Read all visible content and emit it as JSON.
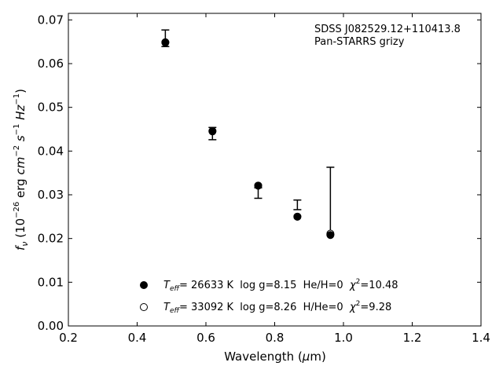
{
  "chart_data": {
    "type": "scatter",
    "xlabel": "Wavelength (μm)",
    "ylabel": "f_ν (10^-26 erg cm^-2 s^-1 Hz^-1)",
    "xlim": [
      0.2,
      1.4
    ],
    "ylim": [
      0.0,
      0.0715
    ],
    "x_ticks": [
      0.2,
      0.4,
      0.6,
      0.8,
      1.0,
      1.2,
      1.4
    ],
    "y_ticks": [
      0.0,
      0.01,
      0.02,
      0.03,
      0.04,
      0.05,
      0.06,
      0.07
    ],
    "x_tick_labels": [
      "0.2",
      "0.4",
      "0.6",
      "0.8",
      "1.0",
      "1.2",
      "1.4"
    ],
    "y_tick_labels": [
      "0.00",
      "0.01",
      "0.02",
      "0.03",
      "0.04",
      "0.05",
      "0.06",
      "0.07"
    ],
    "grid": false,
    "annotations": [
      "SDSS J082529.12+110413.8",
      "Pan-STARRS grizy"
    ],
    "observed": {
      "x": [
        0.482,
        0.619,
        0.752,
        0.866,
        0.962
      ],
      "y": [
        0.0658,
        0.044,
        0.0304,
        0.0277,
        0.0286
      ],
      "yerr": [
        0.0019,
        0.0014,
        0.0012,
        0.0011,
        0.0077
      ]
    },
    "series": [
      {
        "name": "Teff= 26633 K  log g=8.15  He/H=0  χ2=10.48",
        "marker": "filled-circle",
        "x": [
          0.482,
          0.619,
          0.752,
          0.866,
          0.962
        ],
        "y": [
          0.0649,
          0.0446,
          0.0321,
          0.025,
          0.0208
        ]
      },
      {
        "name": "Teff= 33092 K  log g=8.26  H/He=0  χ2=9.28",
        "marker": "open-circle",
        "x": [
          0.482,
          0.619,
          0.752,
          0.866,
          0.962
        ],
        "y": [
          0.0648,
          0.0445,
          0.0321,
          0.025,
          0.0211
        ]
      }
    ],
    "legend_placement": "lower-center",
    "legend": [
      {
        "t": "T",
        "sub": "eff",
        "rest": "= 26633 K  log g=8.15  He/H=0  ",
        "chi": "χ",
        "sup": "2",
        "tail": "=10.48"
      },
      {
        "t": "T",
        "sub": "eff",
        "rest": "= 33092 K  log g=8.26  H/He=0  ",
        "chi": "χ",
        "sup": "2",
        "tail": "=9.28"
      }
    ],
    "colors": {
      "marker": "#000000",
      "axis": "#000000"
    }
  }
}
